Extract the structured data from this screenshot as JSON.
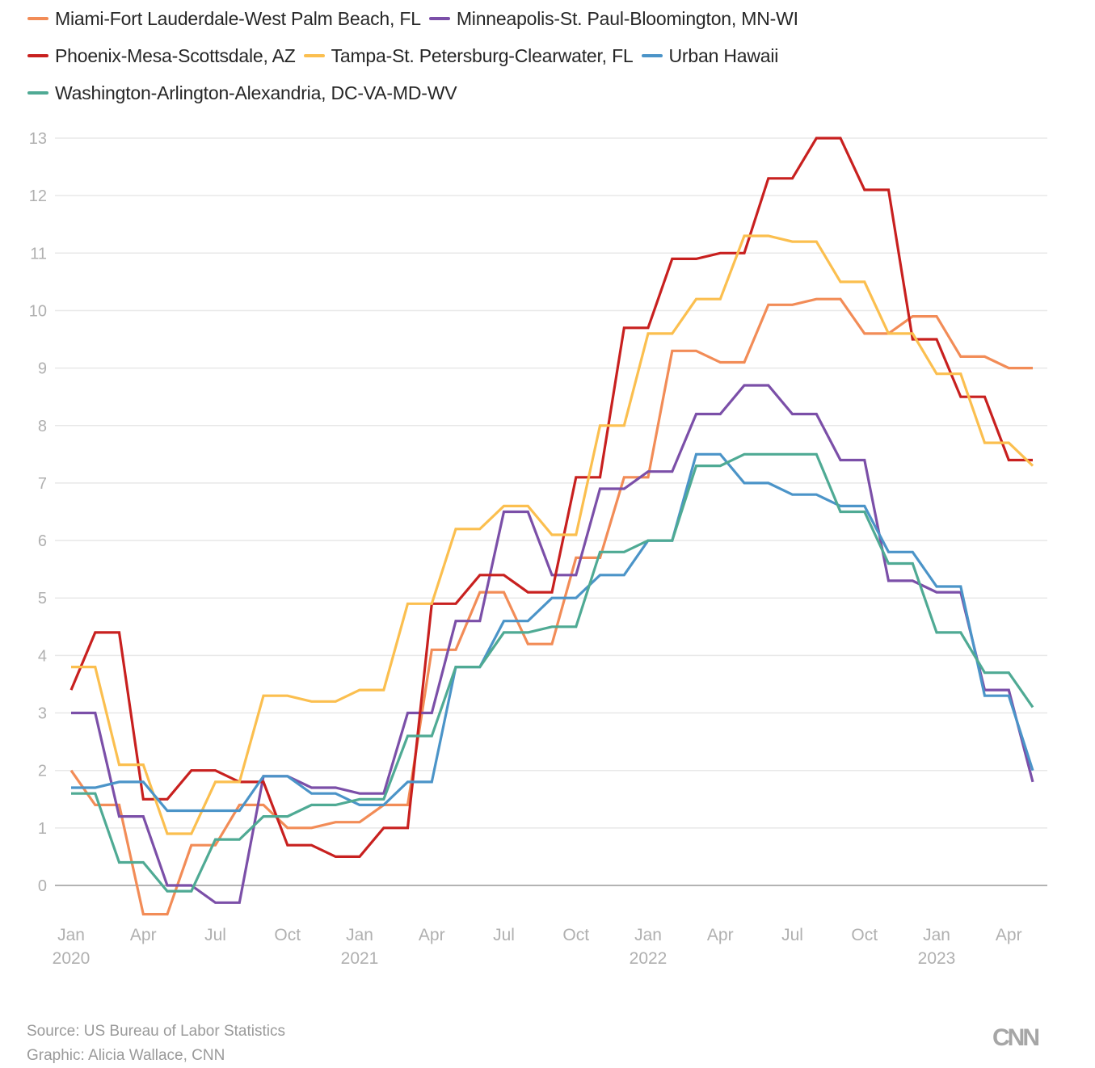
{
  "chart_data": {
    "type": "line",
    "title": "",
    "xlabel": "",
    "ylabel": "",
    "ylim": [
      -0.5,
      13
    ],
    "yticks": [
      0,
      1,
      2,
      3,
      4,
      5,
      6,
      7,
      8,
      9,
      10,
      11,
      12,
      13
    ],
    "grid": true,
    "legend_placement": "top-left",
    "x_start": "Jan 2020",
    "x_end": "May 2023",
    "x_months": [
      "Jan 2020",
      "Feb 2020",
      "Mar 2020",
      "Apr 2020",
      "May 2020",
      "Jun 2020",
      "Jul 2020",
      "Aug 2020",
      "Sep 2020",
      "Oct 2020",
      "Nov 2020",
      "Dec 2020",
      "Jan 2021",
      "Feb 2021",
      "Mar 2021",
      "Apr 2021",
      "May 2021",
      "Jun 2021",
      "Jul 2021",
      "Aug 2021",
      "Sep 2021",
      "Oct 2021",
      "Nov 2021",
      "Dec 2021",
      "Jan 2022",
      "Feb 2022",
      "Mar 2022",
      "Apr 2022",
      "May 2022",
      "Jun 2022",
      "Jul 2022",
      "Aug 2022",
      "Sep 2022",
      "Oct 2022",
      "Nov 2022",
      "Dec 2022",
      "Jan 2023",
      "Feb 2023",
      "Mar 2023",
      "Apr 2023",
      "May 2023"
    ],
    "xticks": [
      {
        "month_index": 0,
        "label": "Jan",
        "year": "2020"
      },
      {
        "month_index": 3,
        "label": "Apr",
        "year": ""
      },
      {
        "month_index": 6,
        "label": "Jul",
        "year": ""
      },
      {
        "month_index": 9,
        "label": "Oct",
        "year": ""
      },
      {
        "month_index": 12,
        "label": "Jan",
        "year": "2021"
      },
      {
        "month_index": 15,
        "label": "Apr",
        "year": ""
      },
      {
        "month_index": 18,
        "label": "Jul",
        "year": ""
      },
      {
        "month_index": 21,
        "label": "Oct",
        "year": ""
      },
      {
        "month_index": 24,
        "label": "Jan",
        "year": "2022"
      },
      {
        "month_index": 27,
        "label": "Apr",
        "year": ""
      },
      {
        "month_index": 30,
        "label": "Jul",
        "year": ""
      },
      {
        "month_index": 33,
        "label": "Oct",
        "year": ""
      },
      {
        "month_index": 36,
        "label": "Jan",
        "year": "2023"
      },
      {
        "month_index": 39,
        "label": "Apr",
        "year": ""
      }
    ],
    "series": [
      {
        "name": "Miami-Fort Lauderdale-West Palm Beach, FL",
        "color": "#f28c57",
        "values": [
          2.0,
          1.4,
          1.4,
          -0.5,
          -0.5,
          0.7,
          0.7,
          1.4,
          1.4,
          1.0,
          1.0,
          1.1,
          1.1,
          1.4,
          1.4,
          4.1,
          4.1,
          5.1,
          5.1,
          4.2,
          4.2,
          5.7,
          5.7,
          7.1,
          7.1,
          9.3,
          9.3,
          9.1,
          9.1,
          10.1,
          10.1,
          10.2,
          10.2,
          9.6,
          9.6,
          9.9,
          9.9,
          9.2,
          9.2,
          9.0,
          9.0
        ]
      },
      {
        "name": "Minneapolis-St. Paul-Bloomington, MN-WI",
        "color": "#7b4fa8",
        "values": [
          3.0,
          3.0,
          1.2,
          1.2,
          0.0,
          0.0,
          -0.3,
          -0.3,
          1.9,
          1.9,
          1.7,
          1.7,
          1.6,
          1.6,
          3.0,
          3.0,
          4.6,
          4.6,
          6.5,
          6.5,
          5.4,
          5.4,
          6.9,
          6.9,
          7.2,
          7.2,
          8.2,
          8.2,
          8.7,
          8.7,
          8.2,
          8.2,
          7.4,
          7.4,
          5.3,
          5.3,
          5.1,
          5.1,
          3.4,
          3.4,
          1.8
        ]
      },
      {
        "name": "Phoenix-Mesa-Scottsdale, AZ",
        "color": "#c8201f",
        "values": [
          3.4,
          4.4,
          4.4,
          1.5,
          1.5,
          2.0,
          2.0,
          1.8,
          1.8,
          0.7,
          0.7,
          0.5,
          0.5,
          1.0,
          1.0,
          4.9,
          4.9,
          5.4,
          5.4,
          5.1,
          5.1,
          7.1,
          7.1,
          9.7,
          9.7,
          10.9,
          10.9,
          11.0,
          11.0,
          12.3,
          12.3,
          13.0,
          13.0,
          12.1,
          12.1,
          9.5,
          9.5,
          8.5,
          8.5,
          7.4,
          7.4
        ]
      },
      {
        "name": "Tampa-St. Petersburg-Clearwater, FL",
        "color": "#fbbf4f",
        "values": [
          3.8,
          3.8,
          2.1,
          2.1,
          0.9,
          0.9,
          1.8,
          1.8,
          3.3,
          3.3,
          3.2,
          3.2,
          3.4,
          3.4,
          4.9,
          4.9,
          6.2,
          6.2,
          6.6,
          6.6,
          6.1,
          6.1,
          8.0,
          8.0,
          9.6,
          9.6,
          10.2,
          10.2,
          11.3,
          11.3,
          11.2,
          11.2,
          10.5,
          10.5,
          9.6,
          9.6,
          8.9,
          8.9,
          7.7,
          7.7,
          7.3
        ]
      },
      {
        "name": "Urban Hawaii",
        "color": "#4b94c8",
        "values": [
          1.7,
          1.7,
          1.8,
          1.8,
          1.3,
          1.3,
          1.3,
          1.3,
          1.9,
          1.9,
          1.6,
          1.6,
          1.4,
          1.4,
          1.8,
          1.8,
          3.8,
          3.8,
          4.6,
          4.6,
          5.0,
          5.0,
          5.4,
          5.4,
          6.0,
          6.0,
          7.5,
          7.5,
          7.0,
          7.0,
          6.8,
          6.8,
          6.6,
          6.6,
          5.8,
          5.8,
          5.2,
          5.2,
          3.3,
          3.3,
          2.0
        ]
      },
      {
        "name": "Washington-Arlington-Alexandria, DC-VA-MD-WV",
        "color": "#4faa94",
        "values": [
          1.6,
          1.6,
          0.4,
          0.4,
          -0.1,
          -0.1,
          0.8,
          0.8,
          1.2,
          1.2,
          1.4,
          1.4,
          1.5,
          1.5,
          2.6,
          2.6,
          3.8,
          3.8,
          4.4,
          4.4,
          4.5,
          4.5,
          5.8,
          5.8,
          6.0,
          6.0,
          7.3,
          7.3,
          7.5,
          7.5,
          7.5,
          7.5,
          6.5,
          6.5,
          5.6,
          5.6,
          4.4,
          4.4,
          3.7,
          3.7,
          3.1
        ]
      }
    ]
  },
  "legend_rows": [
    [
      0,
      1
    ],
    [
      2,
      3,
      4
    ],
    [
      5
    ]
  ],
  "footer": {
    "source": "Source: US Bureau of Labor Statistics",
    "credit": "Graphic: Alicia Wallace, CNN",
    "logo": "CNN"
  }
}
